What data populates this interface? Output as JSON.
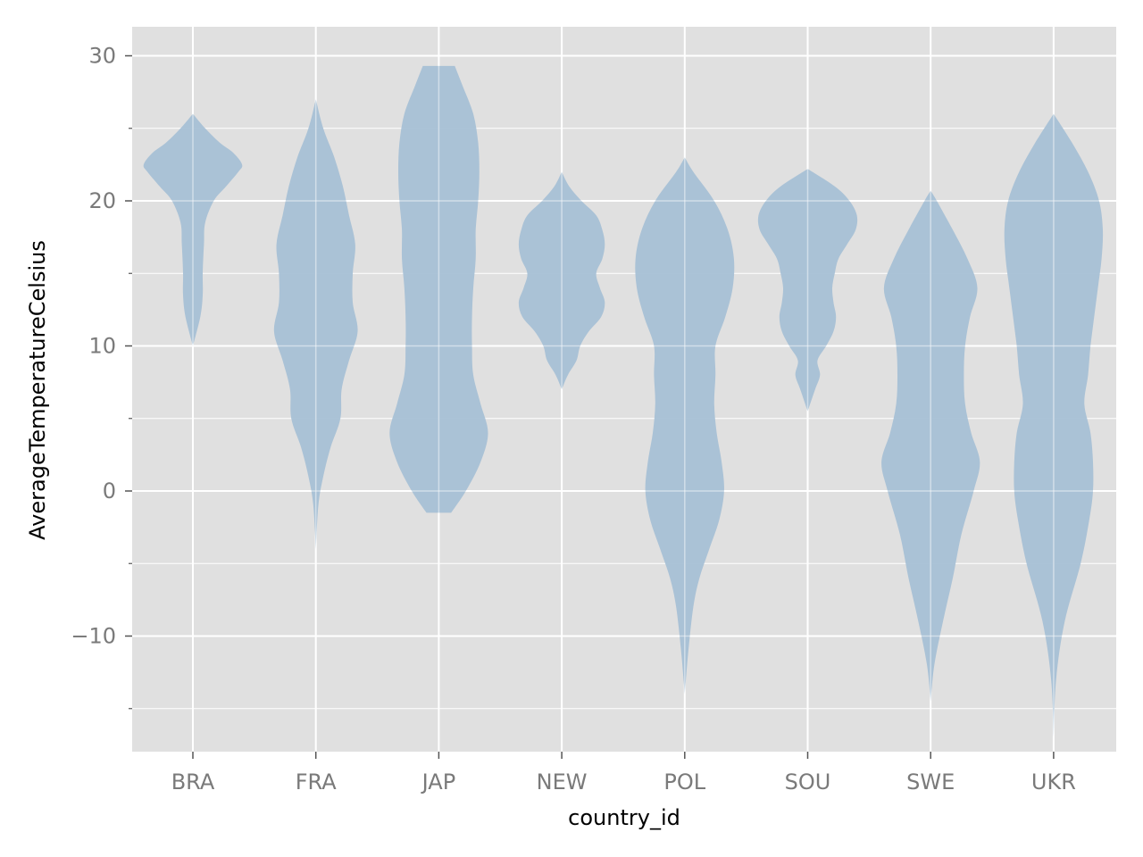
{
  "chart_data": {
    "type": "violin",
    "title": "",
    "xlabel": "country_id",
    "ylabel": "AverageTemperatureCelsius",
    "categories": [
      "BRA",
      "FRA",
      "JAP",
      "NEW",
      "POL",
      "SOU",
      "SWE",
      "UKR"
    ],
    "ylim": [
      -18,
      32
    ],
    "yticks": [
      -10,
      0,
      10,
      20,
      30
    ],
    "yticklabels": [
      "−10",
      "0",
      "10",
      "20",
      "30"
    ],
    "yminor_ticks": [
      -15,
      -5,
      5,
      15,
      25
    ],
    "grid": true,
    "background": "#e0e0e0",
    "grid_color": "#ffffff",
    "violin_color": "#a6c0d5",
    "density_width_scale": "max half-width in category units",
    "series": [
      {
        "category": "BRA",
        "min": 10,
        "max": 26,
        "profile": [
          [
            10,
            0.0
          ],
          [
            12,
            0.06
          ],
          [
            13.5,
            0.08
          ],
          [
            15,
            0.08
          ],
          [
            17,
            0.09
          ],
          [
            18.5,
            0.1
          ],
          [
            20,
            0.17
          ],
          [
            21,
            0.27
          ],
          [
            22,
            0.37
          ],
          [
            22.5,
            0.4
          ],
          [
            23.3,
            0.33
          ],
          [
            24,
            0.22
          ],
          [
            25,
            0.1
          ],
          [
            26,
            0.0
          ]
        ]
      },
      {
        "category": "FRA",
        "min": -4,
        "max": 27,
        "profile": [
          [
            -4,
            0.0
          ],
          [
            -1,
            0.02
          ],
          [
            1,
            0.06
          ],
          [
            3,
            0.12
          ],
          [
            5,
            0.2
          ],
          [
            7,
            0.21
          ],
          [
            9,
            0.27
          ],
          [
            11,
            0.34
          ],
          [
            13,
            0.3
          ],
          [
            15,
            0.3
          ],
          [
            17,
            0.32
          ],
          [
            19,
            0.27
          ],
          [
            21,
            0.22
          ],
          [
            23,
            0.15
          ],
          [
            25,
            0.06
          ],
          [
            27,
            0.0
          ]
        ]
      },
      {
        "category": "JAP",
        "min": -1.5,
        "max": 29.3,
        "profile": [
          [
            -1.5,
            0.1
          ],
          [
            0,
            0.22
          ],
          [
            2,
            0.34
          ],
          [
            4,
            0.4
          ],
          [
            6,
            0.34
          ],
          [
            8,
            0.28
          ],
          [
            10,
            0.27
          ],
          [
            12,
            0.27
          ],
          [
            14,
            0.28
          ],
          [
            16,
            0.3
          ],
          [
            18,
            0.3
          ],
          [
            20,
            0.32
          ],
          [
            22,
            0.33
          ],
          [
            24,
            0.32
          ],
          [
            26,
            0.28
          ],
          [
            28,
            0.19
          ],
          [
            29.3,
            0.13
          ]
        ]
      },
      {
        "category": "NEW",
        "min": 7,
        "max": 22,
        "profile": [
          [
            7,
            0.0
          ],
          [
            8,
            0.05
          ],
          [
            9,
            0.12
          ],
          [
            10,
            0.15
          ],
          [
            11,
            0.22
          ],
          [
            12,
            0.32
          ],
          [
            13,
            0.35
          ],
          [
            14,
            0.31
          ],
          [
            15,
            0.28
          ],
          [
            16,
            0.33
          ],
          [
            17,
            0.35
          ],
          [
            18,
            0.33
          ],
          [
            19,
            0.28
          ],
          [
            20,
            0.16
          ],
          [
            21,
            0.06
          ],
          [
            22,
            0.0
          ]
        ]
      },
      {
        "category": "POL",
        "min": -14,
        "max": 23,
        "profile": [
          [
            -14,
            0.0
          ],
          [
            -11,
            0.03
          ],
          [
            -8,
            0.07
          ],
          [
            -6,
            0.12
          ],
          [
            -4,
            0.2
          ],
          [
            -2,
            0.28
          ],
          [
            0,
            0.32
          ],
          [
            2,
            0.3
          ],
          [
            4,
            0.26
          ],
          [
            6,
            0.24
          ],
          [
            8,
            0.25
          ],
          [
            10,
            0.25
          ],
          [
            12,
            0.33
          ],
          [
            14,
            0.39
          ],
          [
            16,
            0.4
          ],
          [
            18,
            0.35
          ],
          [
            20,
            0.24
          ],
          [
            22,
            0.07
          ],
          [
            23,
            0.0
          ]
        ]
      },
      {
        "category": "SOU",
        "min": 5.5,
        "max": 22.2,
        "profile": [
          [
            5.5,
            0.0
          ],
          [
            7,
            0.06
          ],
          [
            8,
            0.1
          ],
          [
            9,
            0.08
          ],
          [
            10,
            0.15
          ],
          [
            11,
            0.21
          ],
          [
            12,
            0.23
          ],
          [
            13,
            0.21
          ],
          [
            14,
            0.2
          ],
          [
            15,
            0.22
          ],
          [
            16,
            0.25
          ],
          [
            17,
            0.32
          ],
          [
            18,
            0.39
          ],
          [
            19,
            0.4
          ],
          [
            20,
            0.34
          ],
          [
            21,
            0.22
          ],
          [
            22.2,
            0.0
          ]
        ]
      },
      {
        "category": "SWE",
        "min": -14.5,
        "max": 20.7,
        "profile": [
          [
            -14.5,
            0.0
          ],
          [
            -12,
            0.03
          ],
          [
            -9,
            0.1
          ],
          [
            -6,
            0.18
          ],
          [
            -3,
            0.25
          ],
          [
            0,
            0.35
          ],
          [
            2,
            0.4
          ],
          [
            4,
            0.33
          ],
          [
            6,
            0.28
          ],
          [
            8,
            0.27
          ],
          [
            10,
            0.28
          ],
          [
            12,
            0.32
          ],
          [
            14,
            0.38
          ],
          [
            16,
            0.3
          ],
          [
            18,
            0.18
          ],
          [
            20,
            0.05
          ],
          [
            20.7,
            0.0
          ]
        ]
      },
      {
        "category": "UKR",
        "min": -17,
        "max": 26,
        "profile": [
          [
            -17,
            0.0
          ],
          [
            -13,
            0.02
          ],
          [
            -9,
            0.09
          ],
          [
            -5,
            0.22
          ],
          [
            -2,
            0.29
          ],
          [
            0,
            0.32
          ],
          [
            2,
            0.32
          ],
          [
            4,
            0.3
          ],
          [
            6,
            0.25
          ],
          [
            8,
            0.28
          ],
          [
            10,
            0.3
          ],
          [
            12,
            0.33
          ],
          [
            14,
            0.36
          ],
          [
            16,
            0.39
          ],
          [
            18,
            0.4
          ],
          [
            20,
            0.37
          ],
          [
            22,
            0.28
          ],
          [
            24,
            0.15
          ],
          [
            26,
            0.0
          ]
        ]
      }
    ]
  }
}
